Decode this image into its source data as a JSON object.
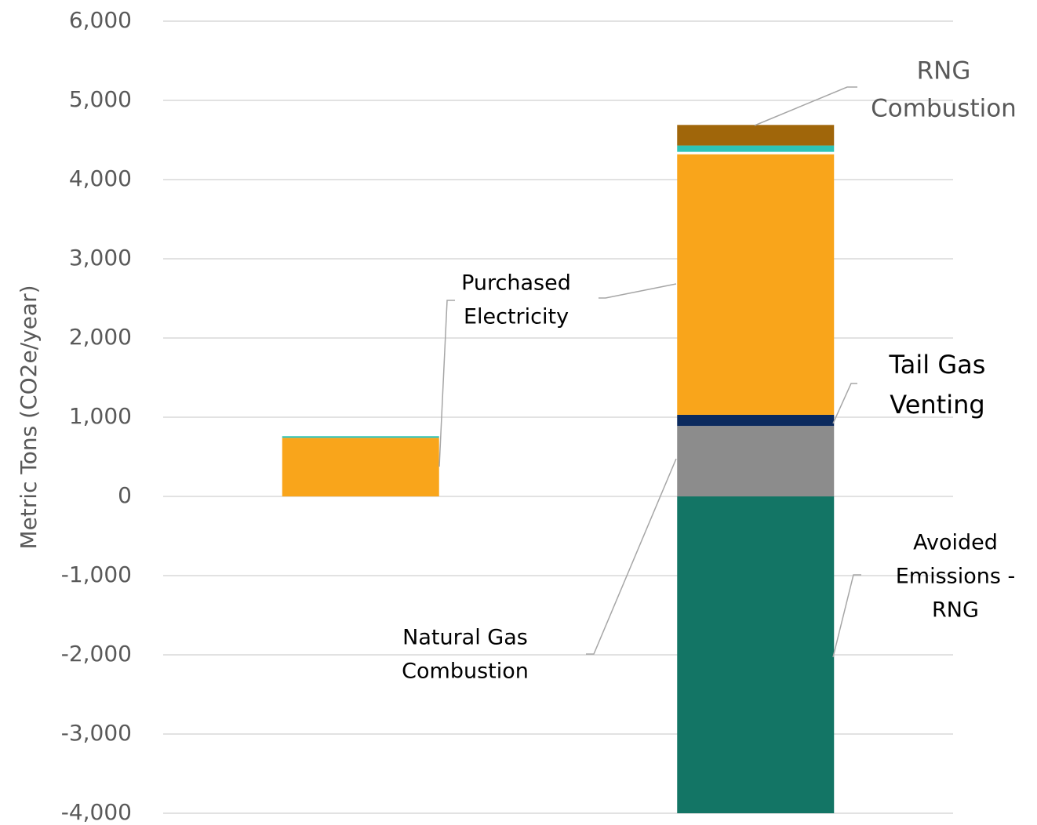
{
  "chart_data": {
    "type": "stacked_bar",
    "y_label": "Metric Tons (CO2e/year)",
    "categories": [
      null,
      null
    ],
    "series": [
      {
        "name": "Avoided Emissions - RNG",
        "color": "#137565",
        "values": [
          0,
          -4000
        ]
      },
      {
        "name": "Natural Gas Combustion",
        "color": "#8c8c8c",
        "values": [
          0,
          890
        ]
      },
      {
        "name": "Tail Gas Venting",
        "color": "#0b2a5e",
        "values": [
          0,
          140
        ]
      },
      {
        "name": "Purchased Electricity",
        "color": "#f9a51b",
        "values": [
          740,
          3290
        ]
      },
      {
        "color": "#ffffff",
        "values": [
          0,
          30
        ]
      },
      {
        "color": "#2ec4b6",
        "values": [
          20,
          80
        ]
      },
      {
        "name": "RNG Combustion",
        "color": "#a0660a",
        "values": [
          0,
          260
        ]
      }
    ],
    "annotations": [
      {
        "lines": [
          "RNG",
          "Combustion"
        ]
      },
      {
        "lines": [
          "Purchased",
          "Electricity"
        ]
      },
      {
        "lines": [
          "Tail Gas",
          "Venting"
        ]
      },
      {
        "lines": [
          "Avoided",
          "Emissions -",
          "RNG"
        ]
      },
      {
        "lines": [
          "Natural Gas",
          "Combustion"
        ]
      }
    ],
    "ylim": [
      -4000,
      6000
    ],
    "yticks": [
      {
        "value": -4000,
        "label": "-4,000"
      },
      {
        "value": -3000,
        "label": "-3,000"
      },
      {
        "value": -2000,
        "label": "-2,000"
      },
      {
        "value": -1000,
        "label": "-1,000"
      },
      0,
      {
        "value": 1000,
        "label": "1,000"
      },
      {
        "value": 2000,
        "label": "2,000"
      },
      {
        "value": 3000,
        "label": "3,000"
      },
      {
        "value": 4000,
        "label": "4,000"
      },
      {
        "value": 5000,
        "label": "5,000"
      },
      {
        "value": 6000,
        "label": "6,000"
      }
    ],
    "grid": true
  }
}
